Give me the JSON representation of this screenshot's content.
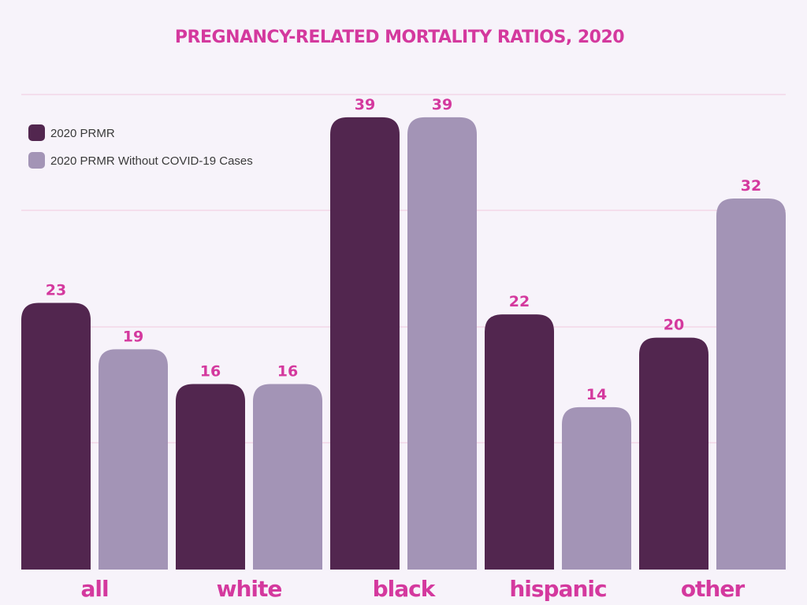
{
  "chart_data": {
    "type": "bar",
    "title": "PREGNANCY-RELATED MORTALITY RATIOS, 2020",
    "categories": [
      "all",
      "white",
      "black",
      "hispanic",
      "other"
    ],
    "series": [
      {
        "name": "2020 PRMR",
        "values": [
          23,
          16,
          39,
          22,
          20
        ],
        "color": "#52264f"
      },
      {
        "name": "2020 PRMR Without COVID-19 Cases",
        "values": [
          19,
          16,
          39,
          14,
          32
        ],
        "color": "#a394b6"
      }
    ],
    "ylim": [
      0,
      40
    ],
    "grid": true,
    "legend_position": "top-left",
    "xlabel": "",
    "ylabel": "",
    "colors": {
      "accent": "#d4399e",
      "background": "#f7f3fa",
      "gridline": "#f1c9de"
    }
  }
}
